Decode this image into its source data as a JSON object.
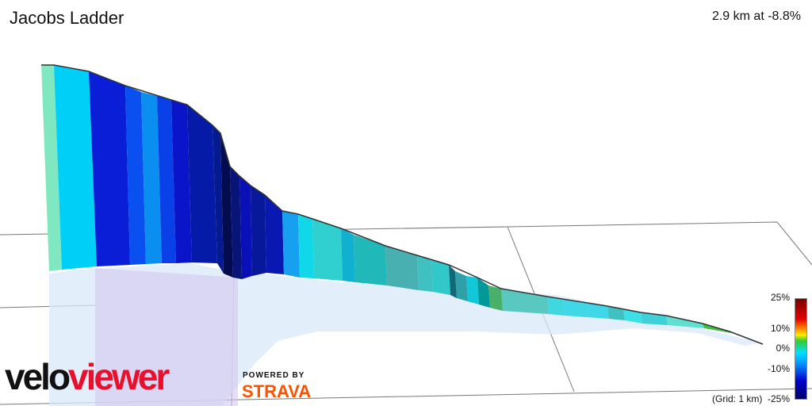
{
  "segment": {
    "name": "Jacobs Ladder",
    "summary": "2.9 km at -8.8%"
  },
  "legend": {
    "labels": [
      "25%",
      "10%",
      "0%",
      "-10%",
      "-25%"
    ],
    "grid_note": "(Grid: 1 km)"
  },
  "branding": {
    "logo_part1": "velo",
    "logo_part2": "viewer",
    "powered_by": "POWERED BY",
    "strava": "STRAVA"
  },
  "colors": {
    "brand_red": "#e8112d",
    "strava_orange": "#fc5200"
  }
}
